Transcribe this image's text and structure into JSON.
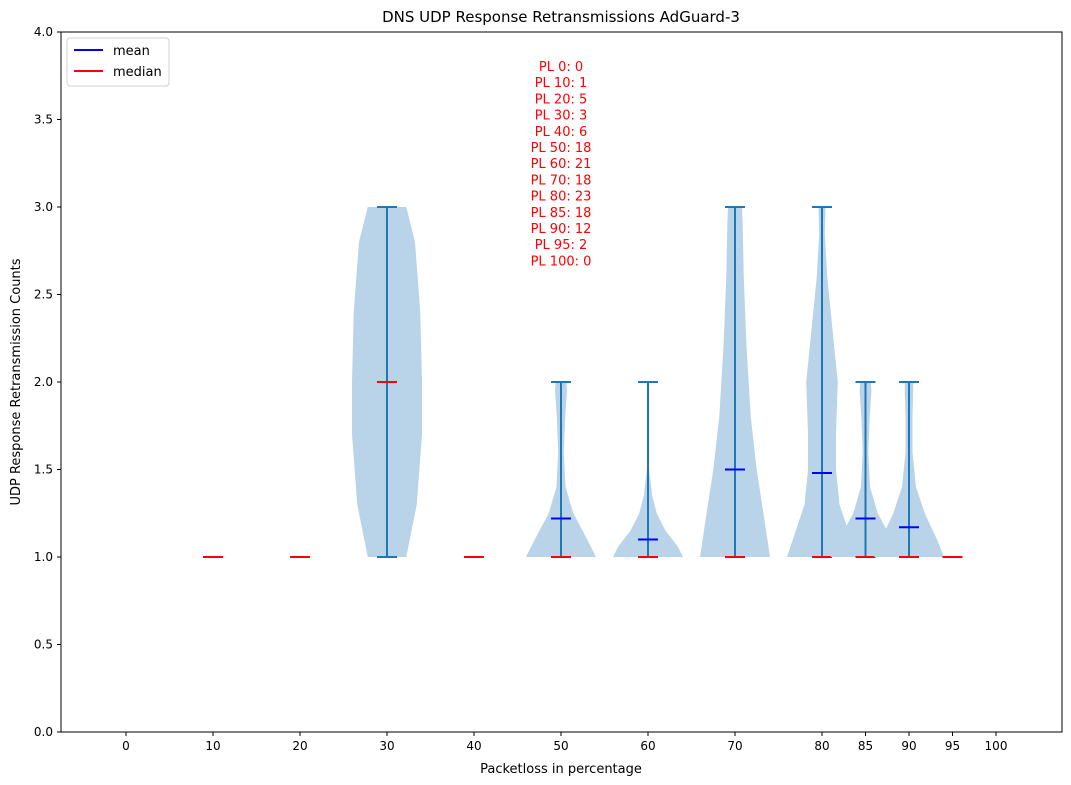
{
  "chart_data": {
    "type": "violin",
    "title": "DNS UDP Response Retransmissions AdGuard-3",
    "xlabel": "Packetloss in percentage",
    "ylabel": "UDP Response Retransmission Counts",
    "ylim": [
      0,
      4.0
    ],
    "yticks": [
      "0.0",
      "0.5",
      "1.0",
      "1.5",
      "2.0",
      "2.5",
      "3.0",
      "3.5",
      "4.0"
    ],
    "categories": [
      "0",
      "10",
      "20",
      "30",
      "40",
      "50",
      "60",
      "70",
      "80",
      "85",
      "90",
      "95",
      "100"
    ],
    "grid": false,
    "legend": {
      "placement": "top-left",
      "entries": [
        {
          "label": "mean",
          "color": "#0000ff"
        },
        {
          "label": "median",
          "color": "#ff0000"
        }
      ]
    },
    "colors": {
      "violin_fill": "#b9d3e8",
      "violin_line": "#1f77b4",
      "mean": "#0000ff",
      "median": "#ff0000"
    },
    "annotation": [
      "PL 0: 0",
      "PL 10: 1",
      "PL 20: 5",
      "PL 30: 3",
      "PL 40: 6",
      "PL 50: 18",
      "PL 60: 21",
      "PL 70: 18",
      "PL 80: 23",
      "PL 85: 18",
      "PL 90: 12",
      "PL 95: 2",
      "PL 100: 0"
    ],
    "series": [
      {
        "x": 10,
        "min": 1,
        "max": 1,
        "mean": 1.0,
        "median": 1
      },
      {
        "x": 20,
        "min": 1,
        "max": 1,
        "mean": 1.0,
        "median": 1
      },
      {
        "x": 30,
        "min": 1,
        "max": 3,
        "mean": 2.0,
        "median": 2,
        "density": [
          [
            1.0,
            0.55
          ],
          [
            1.3,
            0.85
          ],
          [
            1.7,
            1.0
          ],
          [
            2.0,
            1.0
          ],
          [
            2.4,
            0.95
          ],
          [
            2.8,
            0.8
          ],
          [
            3.0,
            0.55
          ]
        ]
      },
      {
        "x": 40,
        "min": 1,
        "max": 1,
        "mean": 1.0,
        "median": 1
      },
      {
        "x": 50,
        "min": 1,
        "max": 2,
        "mean": 1.22,
        "median": 1,
        "density": [
          [
            1.0,
            1.0
          ],
          [
            1.1,
            0.75
          ],
          [
            1.25,
            0.35
          ],
          [
            1.4,
            0.13
          ],
          [
            1.6,
            0.08
          ],
          [
            1.8,
            0.12
          ],
          [
            1.95,
            0.17
          ],
          [
            2.0,
            0.15
          ]
        ]
      },
      {
        "x": 60,
        "min": 1,
        "max": 2,
        "mean": 1.1,
        "median": 1,
        "density": [
          [
            1.0,
            1.0
          ],
          [
            1.06,
            0.85
          ],
          [
            1.15,
            0.5
          ],
          [
            1.25,
            0.25
          ],
          [
            1.35,
            0.12
          ],
          [
            1.5,
            0.03
          ],
          [
            1.7,
            0.01
          ],
          [
            2.0,
            0.01
          ]
        ]
      },
      {
        "x": 70,
        "min": 1,
        "max": 3,
        "mean": 1.5,
        "median": 1,
        "density": [
          [
            1.0,
            1.0
          ],
          [
            1.2,
            0.85
          ],
          [
            1.5,
            0.62
          ],
          [
            1.8,
            0.45
          ],
          [
            2.2,
            0.33
          ],
          [
            2.6,
            0.25
          ],
          [
            2.9,
            0.22
          ],
          [
            3.0,
            0.2
          ]
        ]
      },
      {
        "x": 80,
        "min": 1,
        "max": 3,
        "mean": 1.48,
        "median": 1,
        "density": [
          [
            1.0,
            1.0
          ],
          [
            1.15,
            0.75
          ],
          [
            1.3,
            0.5
          ],
          [
            1.5,
            0.4
          ],
          [
            1.7,
            0.4
          ],
          [
            2.0,
            0.45
          ],
          [
            2.3,
            0.3
          ],
          [
            2.6,
            0.15
          ],
          [
            2.85,
            0.08
          ],
          [
            3.0,
            0.1
          ]
        ]
      },
      {
        "x": 85,
        "min": 1,
        "max": 2,
        "mean": 1.22,
        "median": 1,
        "density": [
          [
            1.0,
            1.0
          ],
          [
            1.1,
            0.75
          ],
          [
            1.25,
            0.35
          ],
          [
            1.4,
            0.13
          ],
          [
            1.6,
            0.08
          ],
          [
            1.8,
            0.12
          ],
          [
            1.95,
            0.17
          ],
          [
            2.0,
            0.15
          ]
        ]
      },
      {
        "x": 90,
        "min": 1,
        "max": 2,
        "mean": 1.17,
        "median": 1,
        "density": [
          [
            1.0,
            1.0
          ],
          [
            1.1,
            0.8
          ],
          [
            1.25,
            0.45
          ],
          [
            1.4,
            0.2
          ],
          [
            1.6,
            0.1
          ],
          [
            1.8,
            0.1
          ],
          [
            1.95,
            0.12
          ],
          [
            2.0,
            0.12
          ]
        ]
      },
      {
        "x": 95,
        "min": 1,
        "max": 1,
        "mean": 1.0,
        "median": 1
      }
    ]
  }
}
